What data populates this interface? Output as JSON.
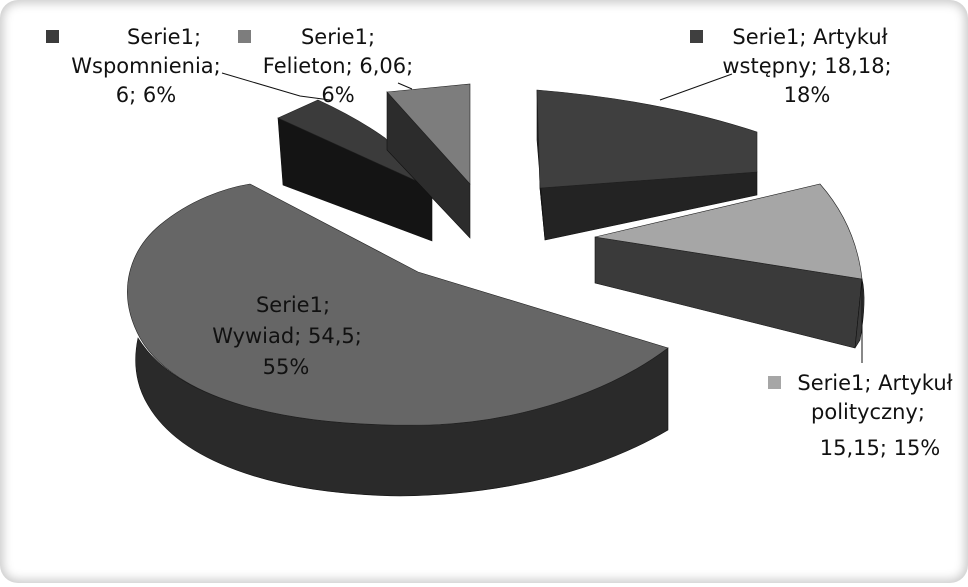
{
  "chart_data": {
    "type": "pie",
    "variant": "3d-exploded",
    "legend_placement": "next-to-data-labels",
    "series": [
      {
        "slices": [
          {
            "key": "artykul_wstepny",
            "series": "Serie1",
            "category": "Artykuł wstępny",
            "value": 18.18,
            "percent": "18%",
            "label_lines": [
              "Serie1; Artykuł",
              "wstępny; 18,18;",
              "18%"
            ],
            "color": "#3f3f3f",
            "side_color": "#232323"
          },
          {
            "key": "artykul_polityczny",
            "series": "Serie1",
            "category": "Artykuł polityczny",
            "value": 15.15,
            "percent": "15%",
            "label_lines": [
              "Serie1; Artykuł",
              "polityczny;",
              "15,15; 15%"
            ],
            "color": "#a6a6a6",
            "side_color": "#3a3a3a"
          },
          {
            "key": "wywiad",
            "series": "Serie1",
            "category": "Wywiad",
            "value": 54.5,
            "percent": "55%",
            "label_lines": [
              "Serie1;",
              "Wywiad; 54,5;",
              "55%"
            ],
            "color": "#666666",
            "side_color": "#2a2a2a"
          },
          {
            "key": "wspomnienia",
            "series": "Serie1",
            "category": "Wspomnienia",
            "value": 6,
            "percent": "6%",
            "label_lines": [
              "Serie1;",
              "Wspomnienia;",
              "6; 6%"
            ],
            "color": "#3b3b3b",
            "side_color": "#141414"
          },
          {
            "key": "felieton",
            "series": "Serie1",
            "category": "Felieton",
            "value": 6.06,
            "percent": "6%",
            "label_lines": [
              "Serie1;",
              "Felieton; 6,06;",
              "6%"
            ],
            "color": "#7d7d7d",
            "side_color": "#2c2c2c"
          }
        ]
      }
    ]
  }
}
